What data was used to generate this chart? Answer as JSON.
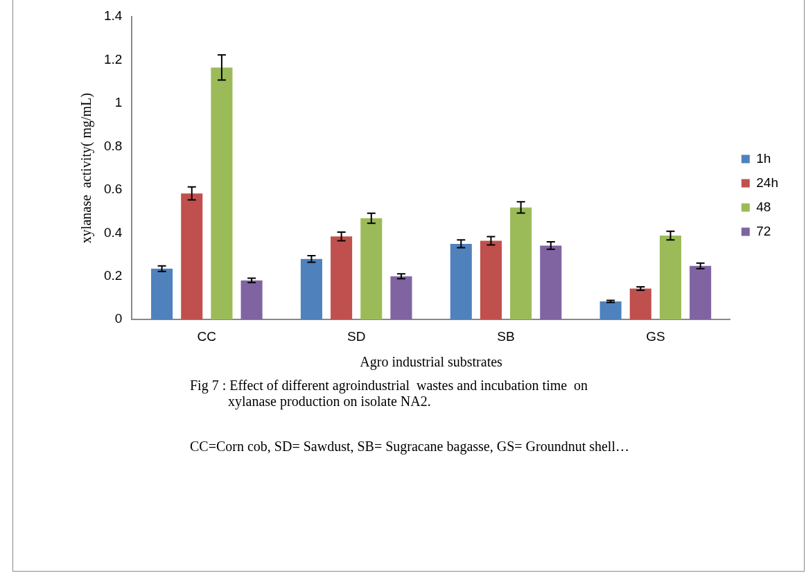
{
  "chart_data": {
    "type": "bar",
    "xlabel": "Agro industrial substrates",
    "ylabel": "xylanase  activity( mg/mL)",
    "categories": [
      "CC",
      "SD",
      "SB",
      "GS"
    ],
    "series": [
      {
        "name": "1h",
        "color": "#4f81bd",
        "values": [
          0.235,
          0.28,
          0.35,
          0.084
        ],
        "errors": [
          0.013,
          0.015,
          0.018,
          0.005
        ]
      },
      {
        "name": "24h",
        "color": "#c0504d",
        "values": [
          0.583,
          0.384,
          0.364,
          0.143
        ],
        "errors": [
          0.03,
          0.02,
          0.019,
          0.008
        ]
      },
      {
        "name": "48",
        "color": "#9bbb59",
        "values": [
          1.165,
          0.468,
          0.518,
          0.388
        ],
        "errors": [
          0.058,
          0.023,
          0.026,
          0.02
        ]
      },
      {
        "name": "72",
        "color": "#8064a2",
        "values": [
          0.181,
          0.2,
          0.342,
          0.248
        ],
        "errors": [
          0.01,
          0.011,
          0.017,
          0.013
        ]
      }
    ],
    "ylim": [
      0,
      1.4
    ],
    "yticks": [
      0,
      0.2,
      0.4,
      0.6,
      0.8,
      1,
      1.2,
      1.4
    ],
    "grid": false,
    "legend": "right",
    "annotations": [
      "Fig 7 : Effect of different agroindustrial  wastes and incubation time  on\n           xylanase production on isolate NA2.",
      "CC=Corn cob, SD= Sawdust, SB= Sugracane bagasse, GS= Groundnut shell…"
    ]
  }
}
